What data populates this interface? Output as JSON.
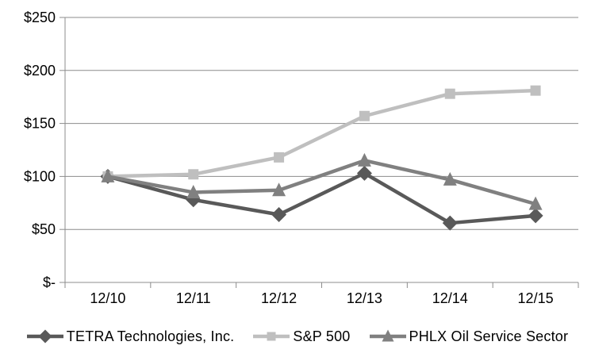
{
  "chart_data": {
    "type": "line",
    "title": "",
    "xlabel": "",
    "ylabel": "",
    "categories": [
      "12/10",
      "12/11",
      "12/12",
      "12/13",
      "12/14",
      "12/15"
    ],
    "series": [
      {
        "name": "TETRA Technologies, Inc.",
        "marker": "diamond",
        "color": "#595959",
        "values": [
          100,
          78,
          64,
          103,
          56,
          63
        ]
      },
      {
        "name": "S&P 500",
        "marker": "square",
        "color": "#BFBFBF",
        "values": [
          100,
          102,
          118,
          157,
          178,
          181
        ]
      },
      {
        "name": "PHLX Oil Service Sector",
        "marker": "triangle",
        "color": "#808080",
        "values": [
          100,
          85,
          87,
          115,
          97,
          74
        ]
      }
    ],
    "ylim": [
      0,
      250
    ],
    "y_ticks": [
      {
        "value": 250,
        "label": "$250"
      },
      {
        "value": 200,
        "label": "$200"
      },
      {
        "value": 150,
        "label": "$150"
      },
      {
        "value": 100,
        "label": "$100"
      },
      {
        "value": 50,
        "label": "$50"
      },
      {
        "value": 0,
        "label": "$-"
      }
    ],
    "grid": true,
    "legend_position": "bottom"
  },
  "styles": {
    "grid_color": "#8C8C8C",
    "axis_color": "#8C8C8C",
    "tick_color": "#8C8C8C",
    "text_color": "#000000",
    "background": "#FFFFFF"
  }
}
